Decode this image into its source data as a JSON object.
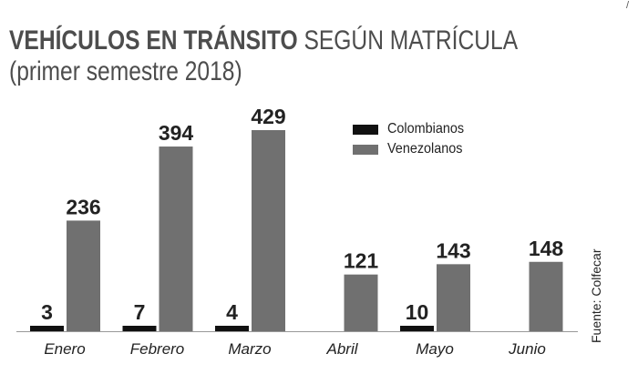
{
  "corner_mark": "/",
  "chart_data": {
    "type": "bar",
    "title_bold": "VEHÍCULOS EN TRÁNSITO",
    "title_rest": " SEGÚN MATRÍCULA",
    "subtitle": "(primer semestre 2018)",
    "categories": [
      "Enero",
      "Febrero",
      "Marzo",
      "Abril",
      "Mayo",
      "Junio"
    ],
    "series": [
      {
        "name": "Colombianos",
        "color": "#111111",
        "values": [
          3,
          7,
          4,
          null,
          10,
          null
        ]
      },
      {
        "name": "Venezolanos",
        "color": "#707070",
        "values": [
          236,
          394,
          429,
          121,
          143,
          148
        ]
      }
    ],
    "ylim": [
      0,
      429
    ],
    "grid": false,
    "legend_position": "top-right",
    "source": "Fuente: Colfecar"
  }
}
